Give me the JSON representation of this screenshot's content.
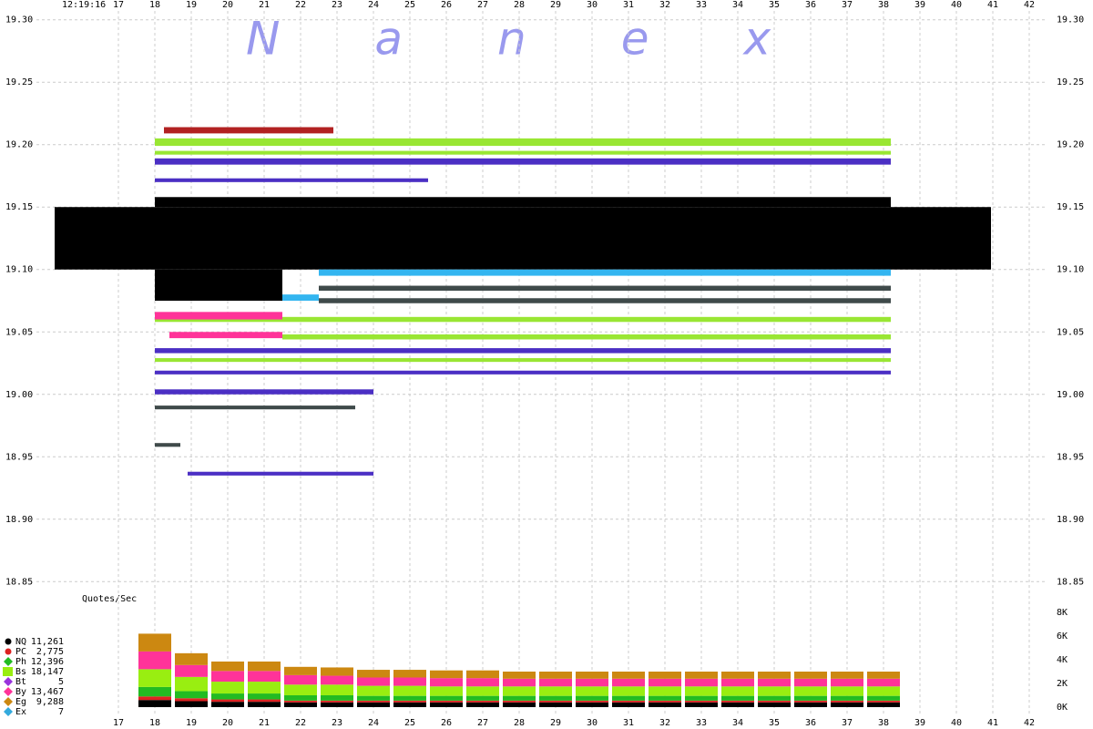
{
  "chart_data": [
    {
      "type": "quote-bands",
      "time_label": "12:19:16",
      "watermark": "Nanex",
      "xlim": [
        15,
        42.5
      ],
      "ylim": [
        18.84,
        19.31
      ],
      "xticks": [
        17,
        18,
        19,
        20,
        21,
        22,
        23,
        24,
        25,
        26,
        27,
        28,
        29,
        30,
        31,
        32,
        33,
        34,
        35,
        36,
        37,
        38,
        39,
        40,
        41,
        42
      ],
      "yticks": [
        {
          "value": 19.3,
          "label": "19.30"
        },
        19.25,
        {
          "value": 19.2,
          "label": "19.20"
        },
        19.15,
        {
          "value": 19.1,
          "label": "19.10"
        },
        19.05,
        {
          "value": 19.0,
          "label": "19.00"
        },
        18.95,
        {
          "value": 18.9,
          "label": "18.90"
        },
        18.85
      ],
      "grid": true,
      "quote_bands": [
        {
          "color": "#b22222",
          "x": [
            18.25,
            22.9
          ],
          "y": [
            19.209,
            19.214
          ]
        },
        {
          "color": "#99e633",
          "x": [
            18,
            38.2
          ],
          "y": [
            19.199,
            19.205
          ]
        },
        {
          "color": "#99e633",
          "x": [
            18,
            38.2
          ],
          "y": [
            19.192,
            19.195
          ]
        },
        {
          "color": "#4b2fc4",
          "x": [
            18,
            38.2
          ],
          "y": [
            19.184,
            19.189
          ]
        },
        {
          "color": "#4b2fc4",
          "x": [
            18,
            25.5
          ],
          "y": [
            19.17,
            19.173
          ]
        },
        {
          "color": "#000000",
          "x": [
            18,
            38.2
          ],
          "y": [
            19.15,
            19.158
          ]
        },
        {
          "color": "#000000",
          "x": [
            15.25,
            40.95
          ],
          "y": [
            19.1,
            19.15
          ]
        },
        {
          "color": "#33b5f0",
          "x": [
            22.5,
            38.2
          ],
          "y": [
            19.095,
            19.1
          ]
        },
        {
          "color": "#000000",
          "x": [
            18,
            21.5
          ],
          "y": [
            19.075,
            19.1
          ]
        },
        {
          "color": "#3f4a4a",
          "x": [
            22.5,
            38.2
          ],
          "y": [
            19.083,
            19.087
          ]
        },
        {
          "color": "#33b5f0",
          "x": [
            21.5,
            22.5
          ],
          "y": [
            19.075,
            19.08
          ]
        },
        {
          "color": "#3f4a4a",
          "x": [
            22.5,
            38.2
          ],
          "y": [
            19.073,
            19.077
          ]
        },
        {
          "color": "#99e633",
          "x": [
            18,
            38.2
          ],
          "y": [
            19.058,
            19.062
          ]
        },
        {
          "color": "#ff3399",
          "x": [
            18,
            21.5
          ],
          "y": [
            19.06,
            19.066
          ]
        },
        {
          "color": "#ff3399",
          "x": [
            18.4,
            21.5
          ],
          "y": [
            19.045,
            19.05
          ]
        },
        {
          "color": "#99e633",
          "x": [
            21.5,
            38.2
          ],
          "y": [
            19.044,
            19.048
          ]
        },
        {
          "color": "#4b2fc4",
          "x": [
            18,
            38.2
          ],
          "y": [
            19.033,
            19.037
          ]
        },
        {
          "color": "#99e633",
          "x": [
            18,
            38.2
          ],
          "y": [
            19.026,
            19.029
          ]
        },
        {
          "color": "#4b2fc4",
          "x": [
            18,
            38.2
          ],
          "y": [
            19.016,
            19.019
          ]
        },
        {
          "color": "#4b2fc4",
          "x": [
            18,
            24
          ],
          "y": [
            19.0,
            19.004
          ]
        },
        {
          "color": "#3f4a4a",
          "x": [
            18,
            23.5
          ],
          "y": [
            18.988,
            18.991
          ]
        },
        {
          "color": "#3f4a4a",
          "x": [
            18,
            18.7
          ],
          "y": [
            18.958,
            18.961
          ]
        },
        {
          "color": "#4b2fc4",
          "x": [
            18.9,
            24
          ],
          "y": [
            18.935,
            18.938
          ]
        }
      ]
    },
    {
      "type": "stacked-bar",
      "label": "Quotes/Sec",
      "xlim": [
        15,
        42.5
      ],
      "ylim": [
        0,
        8000
      ],
      "yticks": [
        {
          "value": 8000,
          "label": "8K"
        },
        {
          "value": 6000,
          "label": "6K"
        },
        {
          "value": 4000,
          "label": "4K"
        },
        {
          "value": 2000,
          "label": "2K"
        },
        {
          "value": 0,
          "label": "0K"
        }
      ],
      "x": [
        18,
        19,
        20,
        21,
        22,
        23,
        24,
        25,
        26,
        27,
        28,
        29,
        30,
        31,
        32,
        33,
        34,
        35,
        36,
        37,
        38
      ],
      "series": [
        {
          "name": "NQ",
          "count": "11,261",
          "color": "#000000",
          "marker": "circle",
          "values": [
            600,
            500,
            450,
            450,
            400,
            400,
            400,
            400,
            400,
            400,
            400,
            400,
            400,
            400,
            400,
            400,
            400,
            400,
            400,
            400,
            400
          ]
        },
        {
          "name": "PC",
          "count": "2,775",
          "color": "#dd2222",
          "marker": "circle",
          "values": [
            300,
            250,
            200,
            200,
            150,
            150,
            150,
            150,
            150,
            150,
            150,
            150,
            150,
            150,
            150,
            150,
            150,
            150,
            150,
            150,
            150
          ]
        },
        {
          "name": "Ph",
          "count": "12,396",
          "color": "#22bb22",
          "marker": "diamond",
          "values": [
            800,
            600,
            500,
            500,
            450,
            450,
            400,
            400,
            400,
            400,
            400,
            400,
            400,
            400,
            400,
            400,
            400,
            400,
            400,
            400,
            400
          ]
        },
        {
          "name": "Bs",
          "count": "18,147",
          "color": "#99ee11",
          "marker": "square",
          "values": [
            1500,
            1200,
            1000,
            1000,
            900,
            900,
            850,
            850,
            800,
            800,
            800,
            800,
            800,
            800,
            800,
            800,
            800,
            800,
            800,
            800,
            800
          ]
        },
        {
          "name": "Bt",
          "count": "5",
          "color": "#9933dd",
          "marker": "diamond",
          "values": [
            0,
            0,
            0,
            0,
            0,
            0,
            0,
            0,
            0,
            0,
            0,
            0,
            0,
            0,
            0,
            0,
            0,
            0,
            0,
            0,
            0
          ]
        },
        {
          "name": "By",
          "count": "13,467",
          "color": "#ff3399",
          "marker": "diamond",
          "values": [
            1500,
            1000,
            900,
            900,
            800,
            750,
            700,
            700,
            700,
            700,
            650,
            650,
            650,
            650,
            650,
            650,
            650,
            650,
            650,
            650,
            650
          ]
        },
        {
          "name": "Eg",
          "count": "9,288",
          "color": "#cc8811",
          "marker": "diamond",
          "values": [
            1500,
            1000,
            800,
            800,
            700,
            700,
            650,
            650,
            650,
            650,
            600,
            600,
            600,
            600,
            600,
            600,
            600,
            600,
            600,
            600,
            600
          ]
        },
        {
          "name": "Ex",
          "count": "7",
          "color": "#33aadd",
          "marker": "diamond",
          "values": [
            0,
            0,
            0,
            0,
            0,
            0,
            0,
            0,
            0,
            0,
            0,
            0,
            0,
            0,
            0,
            0,
            0,
            0,
            0,
            0,
            0
          ]
        }
      ]
    }
  ]
}
